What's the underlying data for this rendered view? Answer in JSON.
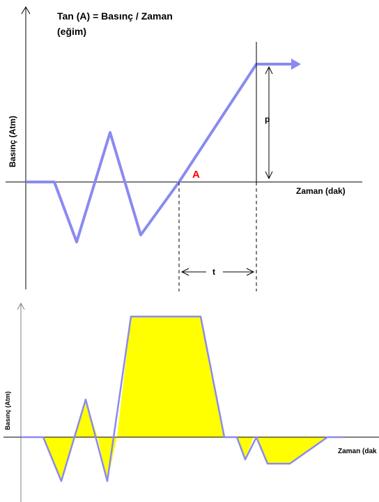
{
  "top_panel": {
    "title_line1": "Tan (A) = Basınç / Zaman",
    "title_line2": "(eğim)",
    "y_axis_label": "Basınç (Atm)",
    "x_axis_label": "Zaman (dak)",
    "angle_label": "A",
    "pressure_label": "p",
    "time_label": "t",
    "curve_color": "#8a8af0",
    "angle_label_color": "#ff0000"
  },
  "bottom_panel": {
    "y_axis_label": "Basınç (Atm)",
    "x_axis_label": "Zaman (dak",
    "curve_color": "#8a8af0",
    "fill_color": "#ffff00",
    "axis_color": "#808080"
  }
}
